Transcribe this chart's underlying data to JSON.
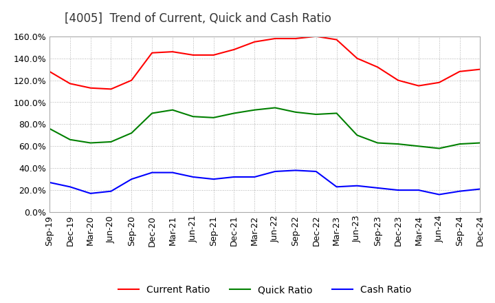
{
  "title": "[4005]  Trend of Current, Quick and Cash Ratio",
  "x_labels": [
    "Sep-19",
    "Dec-19",
    "Mar-20",
    "Jun-20",
    "Sep-20",
    "Dec-20",
    "Mar-21",
    "Jun-21",
    "Sep-21",
    "Dec-21",
    "Mar-22",
    "Jun-22",
    "Sep-22",
    "Dec-22",
    "Mar-23",
    "Jun-23",
    "Sep-23",
    "Dec-23",
    "Mar-24",
    "Jun-24",
    "Sep-24",
    "Dec-24"
  ],
  "current_ratio": [
    128.0,
    117.0,
    113.0,
    112.0,
    120.0,
    145.0,
    146.0,
    143.0,
    143.0,
    148.0,
    155.0,
    158.0,
    158.0,
    160.0,
    157.0,
    140.0,
    132.0,
    120.0,
    115.0,
    118.0,
    128.0,
    130.0
  ],
  "quick_ratio": [
    76.0,
    66.0,
    63.0,
    64.0,
    72.0,
    90.0,
    93.0,
    87.0,
    86.0,
    90.0,
    93.0,
    95.0,
    91.0,
    89.0,
    90.0,
    70.0,
    63.0,
    62.0,
    60.0,
    58.0,
    62.0,
    63.0
  ],
  "cash_ratio": [
    27.0,
    23.0,
    17.0,
    19.0,
    30.0,
    36.0,
    36.0,
    32.0,
    30.0,
    32.0,
    32.0,
    37.0,
    38.0,
    37.0,
    23.0,
    24.0,
    22.0,
    20.0,
    20.0,
    16.0,
    19.0,
    21.0
  ],
  "current_color": "#ff0000",
  "quick_color": "#008000",
  "cash_color": "#0000ff",
  "ylim": [
    0.0,
    160.0
  ],
  "ytick_step": 20.0,
  "bg_color": "#ffffff",
  "grid_color": "#b0b0b0",
  "title_fontsize": 12,
  "legend_fontsize": 10,
  "tick_fontsize": 9
}
